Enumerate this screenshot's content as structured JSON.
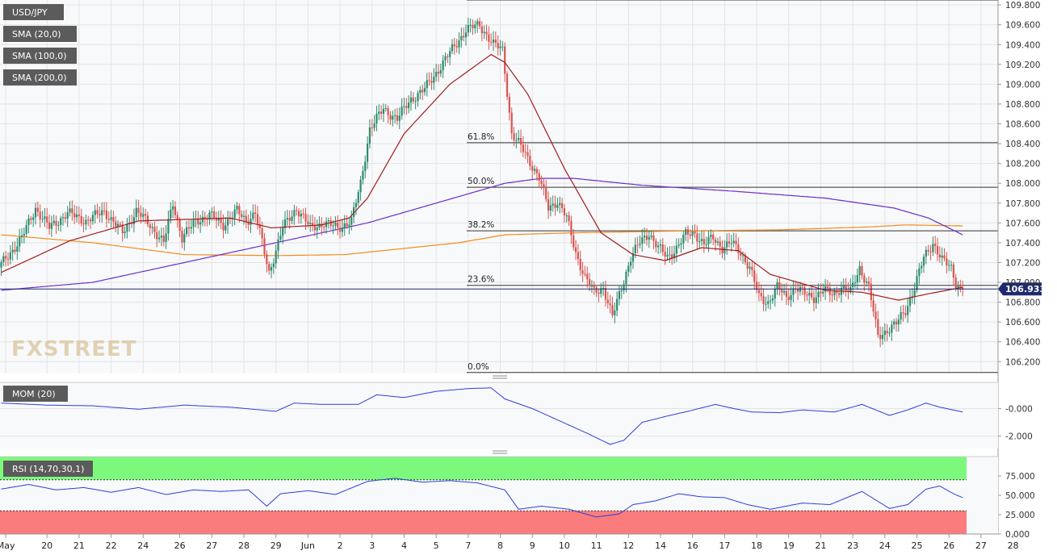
{
  "chart_data": [
    {
      "type": "candlestick",
      "title": "USD/JPY",
      "legend": [
        {
          "name": "USD/JPY",
          "color": "#2e8b6e"
        },
        {
          "name": "SMA (20,0)",
          "color": "#a11d1d"
        },
        {
          "name": "SMA (100,0)",
          "color": "#6a2dc9"
        },
        {
          "name": "SMA (200,0)",
          "color": "#f28c1a"
        }
      ],
      "ylim": [
        106.08,
        109.85
      ],
      "y_ticks": [
        106.2,
        106.4,
        106.6,
        106.8,
        107.0,
        107.2,
        107.4,
        107.6,
        107.8,
        108.0,
        108.2,
        108.4,
        108.6,
        108.8,
        109.0,
        109.2,
        109.4,
        109.6,
        109.8
      ],
      "y_tick_labels": [
        "106.200",
        "106.400",
        "106.600",
        "106.800",
        "107.000",
        "107.200",
        "107.400",
        "107.600",
        "107.800",
        "108.000",
        "108.200",
        "108.400",
        "108.600",
        "108.800",
        "109.000",
        "109.200",
        "109.400",
        "109.600",
        "109.800"
      ],
      "current_price": "106.933",
      "current_price_value": 106.933,
      "fibonacci": [
        {
          "label": "0.0%",
          "value": 106.09
        },
        {
          "label": "23.6%",
          "value": 106.97
        },
        {
          "label": "38.2%",
          "value": 107.52
        },
        {
          "label": "50.0%",
          "value": 107.96
        },
        {
          "label": "61.8%",
          "value": 108.41
        },
        {
          "label": "",
          "value": 109.85
        }
      ],
      "watermark": "FXSTREET",
      "anchors": [
        [
          0,
          107.15
        ],
        [
          5,
          107.3
        ],
        [
          10,
          107.45
        ],
        [
          16,
          107.75
        ],
        [
          22,
          107.55
        ],
        [
          30,
          107.7
        ],
        [
          38,
          107.62
        ],
        [
          46,
          107.72
        ],
        [
          54,
          107.5
        ],
        [
          60,
          107.72
        ],
        [
          66,
          107.58
        ],
        [
          72,
          107.4
        ],
        [
          76,
          107.8
        ],
        [
          80,
          107.45
        ],
        [
          86,
          107.62
        ],
        [
          92,
          107.68
        ],
        [
          98,
          107.58
        ],
        [
          104,
          107.72
        ],
        [
          108,
          107.62
        ],
        [
          112,
          107.7
        ],
        [
          118,
          107.1
        ],
        [
          124,
          107.55
        ],
        [
          130,
          107.75
        ],
        [
          136,
          107.55
        ],
        [
          142,
          107.6
        ],
        [
          148,
          107.55
        ],
        [
          154,
          107.62
        ],
        [
          158,
          108.0
        ],
        [
          162,
          108.55
        ],
        [
          168,
          108.75
        ],
        [
          174,
          108.65
        ],
        [
          180,
          108.85
        ],
        [
          186,
          108.95
        ],
        [
          192,
          109.15
        ],
        [
          198,
          109.35
        ],
        [
          204,
          109.55
        ],
        [
          210,
          109.6
        ],
        [
          216,
          109.4
        ],
        [
          220,
          109.35
        ],
        [
          224,
          108.5
        ],
        [
          230,
          108.3
        ],
        [
          236,
          108.05
        ],
        [
          240,
          107.75
        ],
        [
          244,
          107.82
        ],
        [
          248,
          107.65
        ],
        [
          252,
          107.3
        ],
        [
          256,
          107.05
        ],
        [
          260,
          106.9
        ],
        [
          264,
          106.95
        ],
        [
          268,
          106.65
        ],
        [
          272,
          106.95
        ],
        [
          276,
          107.25
        ],
        [
          280,
          107.4
        ],
        [
          284,
          107.5
        ],
        [
          288,
          107.35
        ],
        [
          292,
          107.25
        ],
        [
          296,
          107.35
        ],
        [
          300,
          107.48
        ],
        [
          304,
          107.5
        ],
        [
          308,
          107.38
        ],
        [
          312,
          107.45
        ],
        [
          316,
          107.35
        ],
        [
          320,
          107.4
        ],
        [
          324,
          107.3
        ],
        [
          328,
          107.15
        ],
        [
          332,
          106.85
        ],
        [
          336,
          106.8
        ],
        [
          340,
          106.95
        ],
        [
          344,
          106.85
        ],
        [
          348,
          106.95
        ],
        [
          352,
          106.88
        ],
        [
          356,
          106.85
        ],
        [
          360,
          106.92
        ],
        [
          364,
          106.88
        ],
        [
          368,
          106.95
        ],
        [
          372,
          106.9
        ],
        [
          376,
          107.15
        ],
        [
          380,
          106.95
        ],
        [
          384,
          106.45
        ],
        [
          388,
          106.52
        ],
        [
          392,
          106.58
        ],
        [
          396,
          106.72
        ],
        [
          400,
          106.95
        ],
        [
          404,
          107.25
        ],
        [
          408,
          107.4
        ],
        [
          412,
          107.22
        ],
        [
          416,
          107.15
        ],
        [
          418,
          107.0
        ],
        [
          420,
          106.93
        ]
      ],
      "sma20": [
        [
          0,
          107.1
        ],
        [
          30,
          107.42
        ],
        [
          60,
          107.62
        ],
        [
          100,
          107.65
        ],
        [
          118,
          107.55
        ],
        [
          140,
          107.58
        ],
        [
          152,
          107.65
        ],
        [
          160,
          107.85
        ],
        [
          176,
          108.5
        ],
        [
          196,
          109.0
        ],
        [
          214,
          109.3
        ],
        [
          220,
          109.22
        ],
        [
          230,
          108.9
        ],
        [
          246,
          108.15
        ],
        [
          262,
          107.5
        ],
        [
          276,
          107.28
        ],
        [
          290,
          107.22
        ],
        [
          306,
          107.35
        ],
        [
          322,
          107.32
        ],
        [
          336,
          107.08
        ],
        [
          360,
          106.92
        ],
        [
          376,
          106.9
        ],
        [
          392,
          106.82
        ],
        [
          404,
          106.88
        ],
        [
          420,
          106.95
        ]
      ],
      "sma100": [
        [
          0,
          106.92
        ],
        [
          40,
          107.0
        ],
        [
          100,
          107.3
        ],
        [
          140,
          107.5
        ],
        [
          160,
          107.6
        ],
        [
          190,
          107.8
        ],
        [
          220,
          108.0
        ],
        [
          236,
          108.05
        ],
        [
          250,
          108.05
        ],
        [
          280,
          107.98
        ],
        [
          320,
          107.92
        ],
        [
          360,
          107.85
        ],
        [
          390,
          107.75
        ],
        [
          405,
          107.65
        ],
        [
          420,
          107.48
        ]
      ],
      "sma200": [
        [
          0,
          107.48
        ],
        [
          40,
          107.4
        ],
        [
          80,
          107.28
        ],
        [
          120,
          107.27
        ],
        [
          150,
          107.28
        ],
        [
          200,
          107.4
        ],
        [
          220,
          107.48
        ],
        [
          250,
          107.5
        ],
        [
          300,
          107.52
        ],
        [
          340,
          107.53
        ],
        [
          380,
          107.56
        ],
        [
          395,
          107.58
        ],
        [
          420,
          107.57
        ]
      ]
    },
    {
      "type": "line",
      "title": "MOM (20)",
      "color": "#2c3ed6",
      "ylim": [
        -2.9,
        1.9
      ],
      "y_ticks": [
        0.0,
        -2.0
      ],
      "y_tick_labels": [
        "-0.000",
        "-2.000"
      ],
      "series": [
        [
          0,
          0.4
        ],
        [
          20,
          0.25
        ],
        [
          40,
          0.2
        ],
        [
          60,
          -0.05
        ],
        [
          80,
          0.25
        ],
        [
          100,
          0.1
        ],
        [
          120,
          -0.2
        ],
        [
          128,
          0.4
        ],
        [
          140,
          0.3
        ],
        [
          156,
          0.3
        ],
        [
          164,
          1.0
        ],
        [
          176,
          0.8
        ],
        [
          190,
          1.25
        ],
        [
          204,
          1.45
        ],
        [
          214,
          1.5
        ],
        [
          220,
          0.7
        ],
        [
          232,
          0.0
        ],
        [
          244,
          -0.9
        ],
        [
          256,
          -1.8
        ],
        [
          266,
          -2.6
        ],
        [
          272,
          -2.3
        ],
        [
          280,
          -1.0
        ],
        [
          292,
          -0.5
        ],
        [
          300,
          -0.2
        ],
        [
          312,
          0.3
        ],
        [
          320,
          0.0
        ],
        [
          328,
          -0.25
        ],
        [
          340,
          -0.3
        ],
        [
          350,
          -0.1
        ],
        [
          364,
          -0.25
        ],
        [
          376,
          0.3
        ],
        [
          382,
          -0.1
        ],
        [
          388,
          -0.5
        ],
        [
          396,
          -0.1
        ],
        [
          404,
          0.4
        ],
        [
          410,
          0.1
        ],
        [
          420,
          -0.25
        ]
      ]
    },
    {
      "type": "line",
      "title": "RSI (14,70,30,1)",
      "color": "#2c3ed6",
      "ylim": [
        0,
        100
      ],
      "overbought": 70,
      "oversold": 30,
      "y_ticks": [
        75,
        50,
        25,
        0
      ],
      "y_tick_labels": [
        "75.000",
        "50.000",
        "25.000",
        "0.000"
      ],
      "series": [
        [
          0,
          58
        ],
        [
          12,
          64
        ],
        [
          24,
          57
        ],
        [
          36,
          60
        ],
        [
          48,
          54
        ],
        [
          60,
          60
        ],
        [
          72,
          51
        ],
        [
          84,
          57
        ],
        [
          96,
          55
        ],
        [
          108,
          57
        ],
        [
          116,
          36
        ],
        [
          122,
          52
        ],
        [
          134,
          56
        ],
        [
          146,
          51
        ],
        [
          160,
          68
        ],
        [
          172,
          72
        ],
        [
          184,
          67
        ],
        [
          196,
          69
        ],
        [
          208,
          66
        ],
        [
          220,
          57
        ],
        [
          226,
          32
        ],
        [
          236,
          36
        ],
        [
          248,
          32
        ],
        [
          260,
          22
        ],
        [
          270,
          26
        ],
        [
          276,
          38
        ],
        [
          286,
          43
        ],
        [
          296,
          52
        ],
        [
          306,
          48
        ],
        [
          316,
          47
        ],
        [
          326,
          38
        ],
        [
          336,
          32
        ],
        [
          350,
          40
        ],
        [
          362,
          38
        ],
        [
          376,
          55
        ],
        [
          382,
          44
        ],
        [
          388,
          33
        ],
        [
          396,
          38
        ],
        [
          404,
          58
        ],
        [
          410,
          62
        ],
        [
          416,
          52
        ],
        [
          420,
          47
        ]
      ]
    }
  ],
  "x_axis": {
    "bar_count": 421,
    "date_labels": [
      {
        "label": "May",
        "bar": 2
      },
      {
        "label": "20",
        "bar": 20
      },
      {
        "label": "21",
        "bar": 34
      },
      {
        "label": "22",
        "bar": 48
      },
      {
        "label": "24",
        "bar": 62
      },
      {
        "label": "26",
        "bar": 78
      },
      {
        "label": "27",
        "bar": 92
      },
      {
        "label": "28",
        "bar": 106
      },
      {
        "label": "29",
        "bar": 120
      },
      {
        "label": "Jun",
        "bar": 134
      },
      {
        "label": "2",
        "bar": 148
      },
      {
        "label": "3",
        "bar": 162
      },
      {
        "label": "4",
        "bar": 176
      },
      {
        "label": "5",
        "bar": 190
      },
      {
        "label": "7",
        "bar": 204
      },
      {
        "label": "8",
        "bar": 218
      },
      {
        "label": "9",
        "bar": 232
      },
      {
        "label": "10",
        "bar": 246
      },
      {
        "label": "11",
        "bar": 260
      },
      {
        "label": "12",
        "bar": 274
      },
      {
        "label": "14",
        "bar": 288
      },
      {
        "label": "16",
        "bar": 302
      },
      {
        "label": "17",
        "bar": 316
      },
      {
        "label": "18",
        "bar": 330
      },
      {
        "label": "19",
        "bar": 344
      },
      {
        "label": "21",
        "bar": 358
      },
      {
        "label": "23",
        "bar": 372
      },
      {
        "label": "24",
        "bar": 386
      },
      {
        "label": "25",
        "bar": 400
      },
      {
        "label": "26",
        "bar": 414
      },
      {
        "label": "27",
        "bar": 428
      },
      {
        "label": "28",
        "bar": 442
      }
    ]
  },
  "colors": {
    "bull": "#2e8b6e",
    "bear": "#d9544f",
    "grid": "#e4e4e4",
    "ob_zone": "#7cf87c",
    "os_zone": "#fb7c7c",
    "price_tag": "#1f2a6e"
  }
}
